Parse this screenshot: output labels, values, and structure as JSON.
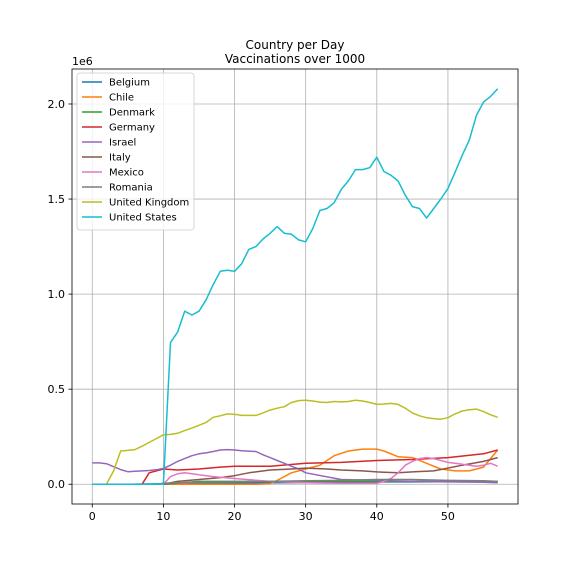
{
  "chart_data": {
    "type": "line",
    "title": "Country per Day",
    "subtitle": "Vaccinations over 1000",
    "xlabel": "",
    "ylabel": "",
    "y_offset_text": "1e6",
    "xlim": [
      -2.85,
      59.85
    ],
    "ylim": [
      -104000,
      2184000
    ],
    "xticks": [
      0,
      10,
      20,
      30,
      40,
      50
    ],
    "yticks": [
      0,
      500000,
      1000000,
      1500000,
      2000000
    ],
    "ytick_labels": [
      "0.0",
      "0.5",
      "1.0",
      "1.5",
      "2.0"
    ],
    "grid": true,
    "legend_position": "top-left",
    "series": [
      {
        "name": "Belgium",
        "color": "#1f77b4",
        "x": [
          0,
          5,
          10,
          15,
          20,
          25,
          30,
          35,
          40,
          45,
          50,
          57
        ],
        "y": [
          0,
          0,
          2000,
          5000,
          8000,
          8000,
          9000,
          10000,
          12000,
          12000,
          13000,
          14000
        ]
      },
      {
        "name": "Chile",
        "color": "#ff7f0e",
        "x": [
          0,
          23,
          25,
          26,
          28,
          30,
          32,
          34,
          36,
          38,
          40,
          41,
          43,
          45,
          47,
          49,
          51,
          53,
          55,
          57
        ],
        "y": [
          0,
          0,
          2000,
          20000,
          60000,
          80000,
          100000,
          150000,
          175000,
          185000,
          185000,
          175000,
          145000,
          140000,
          110000,
          80000,
          70000,
          70000,
          90000,
          180000
        ]
      },
      {
        "name": "Denmark",
        "color": "#2ca02c",
        "x": [
          0,
          10,
          15,
          20,
          25,
          30,
          35,
          40,
          45,
          50,
          57
        ],
        "y": [
          0,
          0,
          15000,
          15000,
          15000,
          15000,
          15000,
          15000,
          15000,
          15000,
          15000
        ]
      },
      {
        "name": "Germany",
        "color": "#d62728",
        "x": [
          0,
          7,
          8,
          10,
          12,
          15,
          18,
          20,
          25,
          30,
          35,
          40,
          45,
          50,
          55,
          57
        ],
        "y": [
          0,
          0,
          60000,
          80000,
          75000,
          80000,
          90000,
          95000,
          95000,
          110000,
          115000,
          125000,
          130000,
          140000,
          160000,
          180000
        ]
      },
      {
        "name": "Israel",
        "color": "#9467bd",
        "x": [
          0,
          1,
          2,
          3,
          4,
          5,
          6,
          7,
          8,
          9,
          10,
          11,
          12,
          13,
          14,
          15,
          16,
          17,
          18,
          19,
          20,
          21,
          22,
          23,
          24,
          25,
          26,
          27,
          28,
          29,
          30,
          35,
          40,
          45,
          50,
          55,
          57
        ],
        "y": [
          112000,
          112000,
          108000,
          92000,
          77000,
          66000,
          68000,
          70000,
          72000,
          76000,
          83000,
          100000,
          120000,
          135000,
          150000,
          160000,
          165000,
          172000,
          180000,
          182000,
          180000,
          176000,
          174000,
          172000,
          155000,
          140000,
          125000,
          110000,
          95000,
          80000,
          60000,
          25000,
          20000,
          15000,
          12000,
          10000,
          8000
        ]
      },
      {
        "name": "Italy",
        "color": "#8c564b",
        "x": [
          0,
          10,
          12,
          15,
          18,
          20,
          22,
          25,
          28,
          30,
          33,
          35,
          38,
          40,
          43,
          45,
          48,
          50,
          52,
          55,
          57
        ],
        "y": [
          0,
          0,
          15000,
          25000,
          35000,
          45000,
          60000,
          75000,
          80000,
          85000,
          80000,
          75000,
          70000,
          65000,
          60000,
          65000,
          70000,
          85000,
          100000,
          120000,
          140000
        ]
      },
      {
        "name": "Mexico",
        "color": "#e377c2",
        "x": [
          0,
          10,
          11,
          12,
          13,
          14,
          15,
          17,
          20,
          25,
          30,
          35,
          40,
          41,
          42,
          43,
          44,
          45,
          46,
          47,
          48,
          49,
          50,
          51,
          52,
          53,
          54,
          55,
          56,
          57
        ],
        "y": [
          0,
          0,
          40000,
          55000,
          60000,
          55000,
          50000,
          40000,
          30000,
          15000,
          8000,
          5000,
          5000,
          15000,
          30000,
          60000,
          100000,
          120000,
          135000,
          140000,
          135000,
          125000,
          115000,
          110000,
          105000,
          100000,
          95000,
          100000,
          110000,
          95000
        ]
      },
      {
        "name": "Romania",
        "color": "#7f7f7f",
        "x": [
          0,
          9,
          10,
          12,
          15,
          20,
          25,
          30,
          35,
          40,
          45,
          50,
          55,
          57
        ],
        "y": [
          0,
          0,
          5000,
          8000,
          10000,
          12000,
          15000,
          18000,
          20000,
          25000,
          25000,
          20000,
          18000,
          15000
        ]
      },
      {
        "name": "United Kingdom",
        "color": "#bcbd22",
        "x": [
          0,
          1,
          2,
          3,
          4,
          5,
          6,
          7,
          8,
          9,
          10,
          11,
          12,
          13,
          14,
          15,
          16,
          17,
          18,
          19,
          20,
          21,
          22,
          23,
          24,
          25,
          26,
          27,
          28,
          29,
          30,
          31,
          32,
          33,
          34,
          35,
          36,
          37,
          38,
          39,
          40,
          41,
          42,
          43,
          44,
          45,
          46,
          47,
          48,
          49,
          50,
          51,
          52,
          53,
          54,
          55,
          56,
          57
        ],
        "y": [
          0,
          0,
          0,
          70000,
          175000,
          178000,
          182000,
          200000,
          220000,
          240000,
          260000,
          262000,
          268000,
          282000,
          295000,
          310000,
          325000,
          352000,
          360000,
          370000,
          368000,
          362000,
          362000,
          362000,
          375000,
          390000,
          400000,
          408000,
          430000,
          440000,
          442000,
          438000,
          432000,
          430000,
          435000,
          433000,
          435000,
          442000,
          438000,
          430000,
          420000,
          422000,
          425000,
          420000,
          400000,
          375000,
          360000,
          350000,
          345000,
          342000,
          350000,
          370000,
          385000,
          392000,
          395000,
          382000,
          365000,
          352000
        ]
      },
      {
        "name": "United States",
        "color": "#17becf",
        "x": [
          0,
          10,
          11,
          12,
          13,
          14,
          15,
          16,
          17,
          18,
          19,
          20,
          21,
          22,
          23,
          24,
          25,
          26,
          27,
          28,
          29,
          30,
          31,
          32,
          33,
          34,
          35,
          36,
          37,
          38,
          39,
          40,
          41,
          42,
          43,
          44,
          45,
          46,
          47,
          48,
          49,
          50,
          51,
          52,
          53,
          54,
          55,
          56,
          57
        ],
        "y": [
          0,
          0,
          745000,
          800000,
          910000,
          890000,
          910000,
          970000,
          1050000,
          1120000,
          1125000,
          1120000,
          1160000,
          1235000,
          1250000,
          1290000,
          1320000,
          1355000,
          1320000,
          1315000,
          1285000,
          1275000,
          1345000,
          1440000,
          1450000,
          1480000,
          1550000,
          1595000,
          1655000,
          1655000,
          1665000,
          1720000,
          1645000,
          1625000,
          1595000,
          1520000,
          1460000,
          1450000,
          1400000,
          1450000,
          1500000,
          1555000,
          1640000,
          1730000,
          1810000,
          1940000,
          2010000,
          2040000,
          2080000
        ]
      }
    ]
  }
}
